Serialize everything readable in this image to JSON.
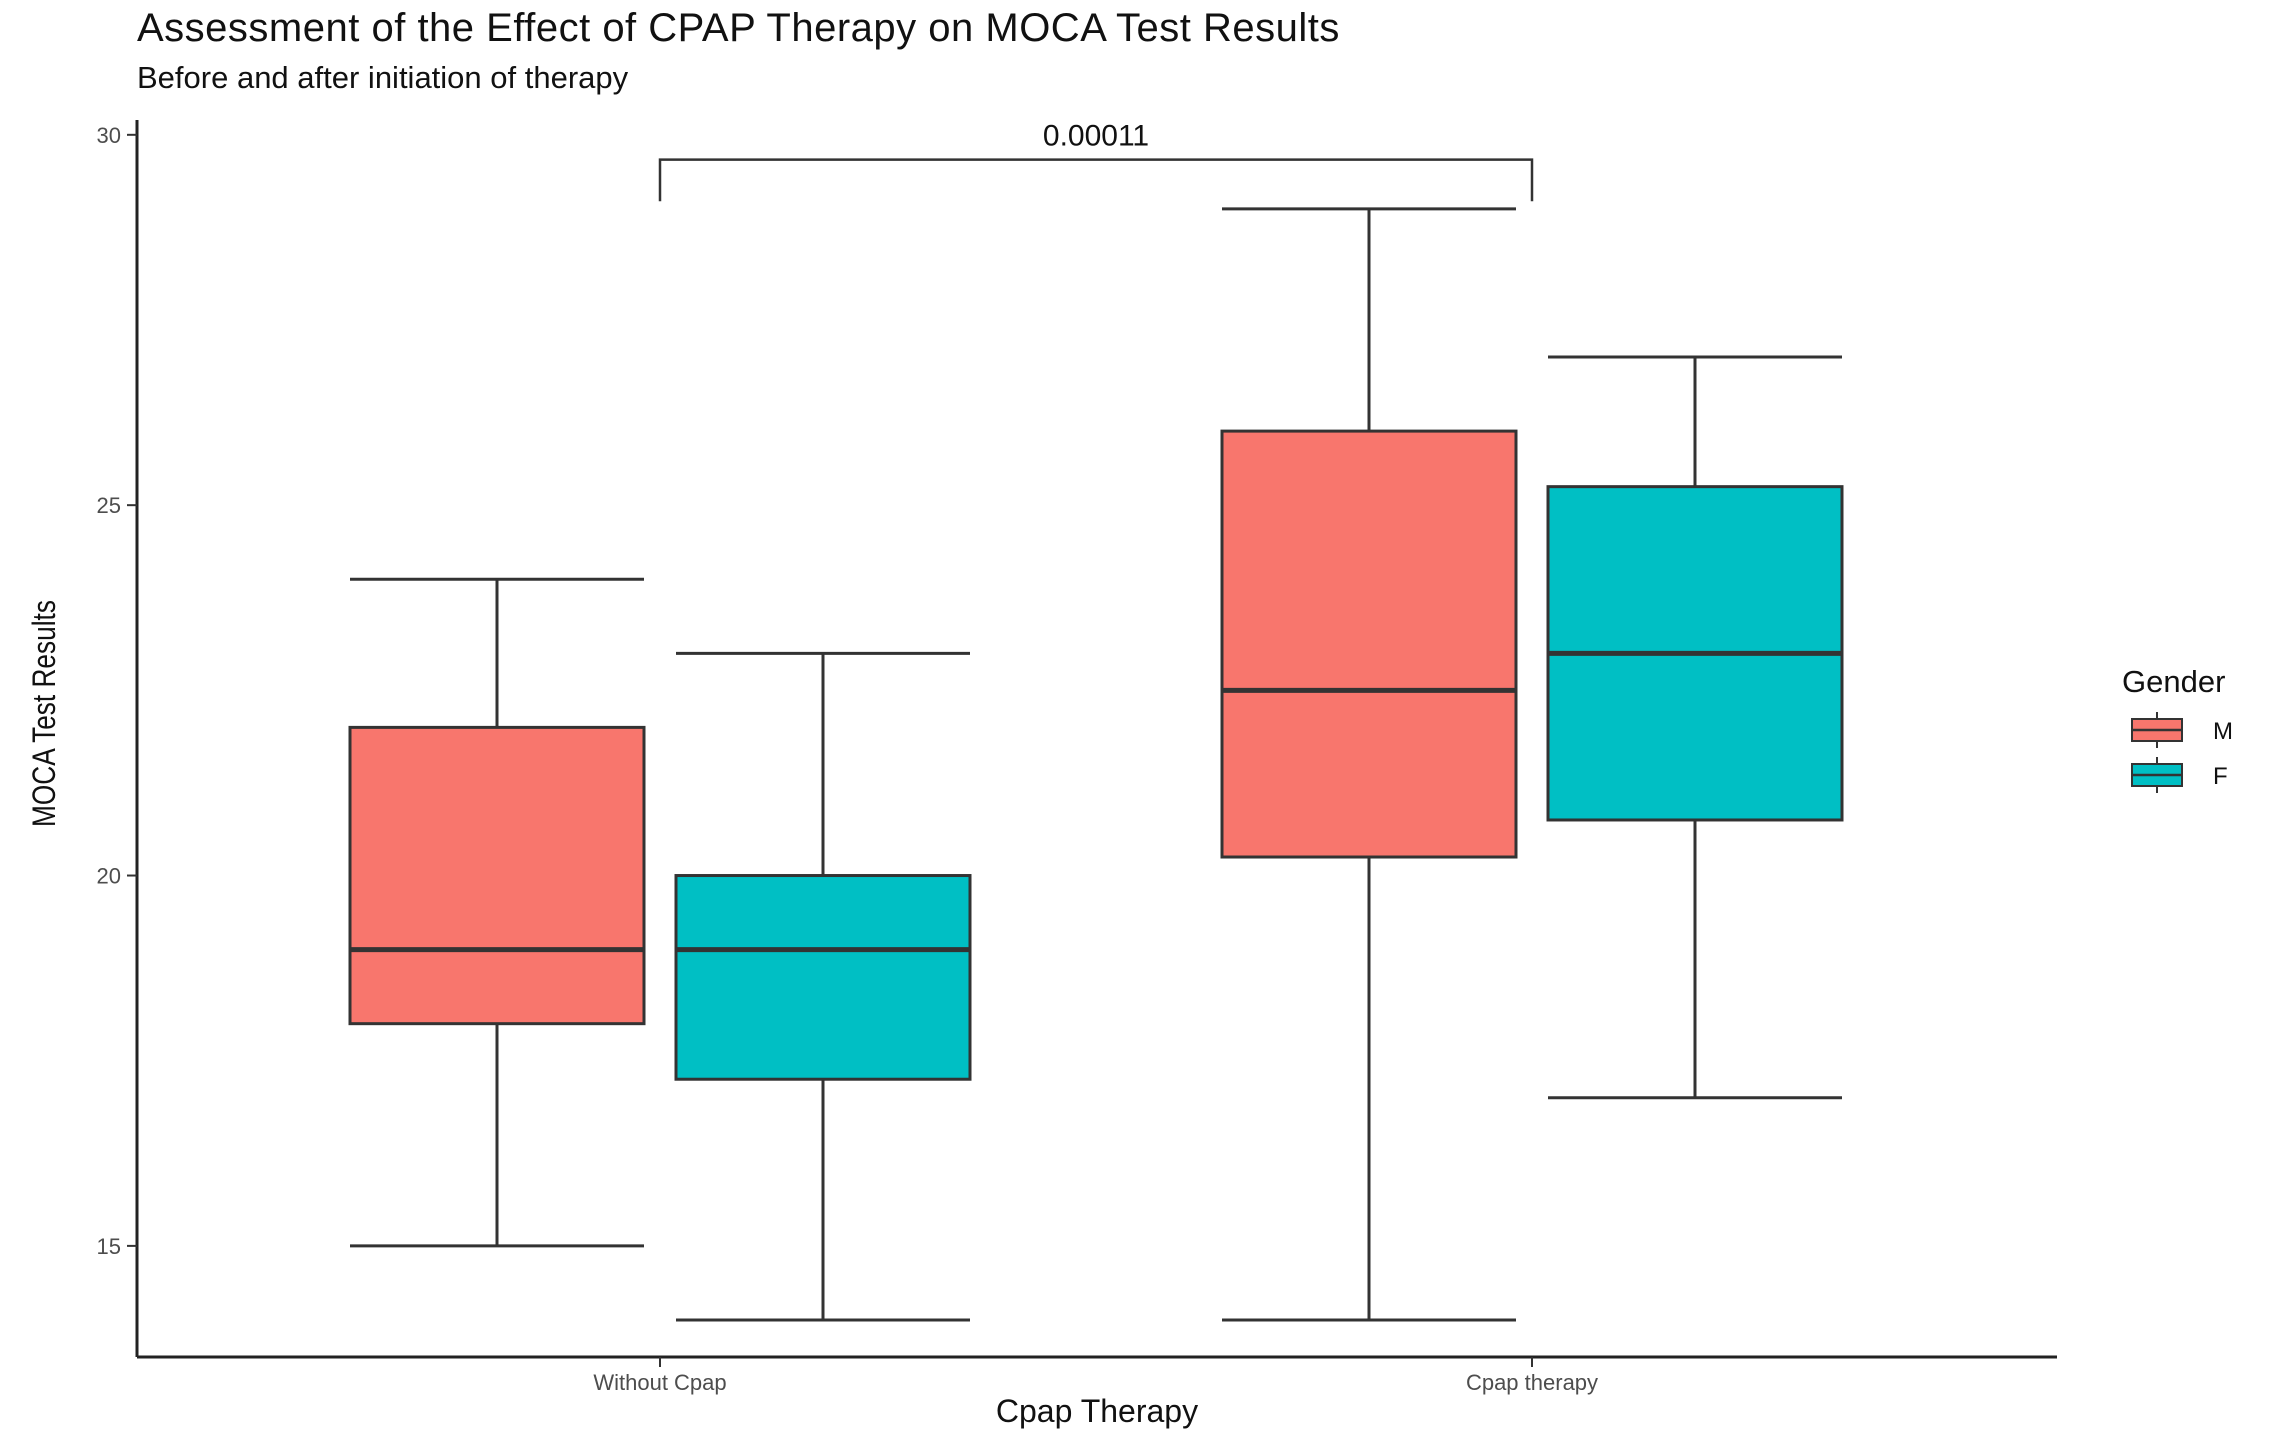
{
  "chart_data": {
    "type": "boxplot",
    "title": "Assessment of the Effect of CPAP Therapy on MOCA Test Results",
    "subtitle": "Before and after initiation of therapy",
    "xlabel": "Cpap Therapy",
    "ylabel": "MOCA Test Results",
    "ylim": [
      13.5,
      30.2
    ],
    "yticks": [
      15,
      20,
      25,
      30
    ],
    "yticklabels": [
      "15",
      "20",
      "25",
      "30"
    ],
    "categories": [
      "Without Cpap",
      "Cpap therapy"
    ],
    "legend": {
      "title": "Gender",
      "position": "right",
      "entries": [
        {
          "label": "M",
          "color": "#F8766D"
        },
        {
          "label": "F",
          "color": "#00BFC4"
        }
      ]
    },
    "series": [
      {
        "name": "M",
        "color": "#F8766D",
        "boxes": [
          {
            "category": "Without Cpap",
            "min": 15,
            "q1": 18,
            "median": 19,
            "q3": 22,
            "max": 24
          },
          {
            "category": "Cpap therapy",
            "min": 14,
            "q1": 20.25,
            "median": 22.5,
            "q3": 26,
            "max": 29
          }
        ]
      },
      {
        "name": "F",
        "color": "#00BFC4",
        "boxes": [
          {
            "category": "Without Cpap",
            "min": 14,
            "q1": 17.25,
            "median": 19,
            "q3": 20,
            "max": 23
          },
          {
            "category": "Cpap therapy",
            "min": 17,
            "q1": 20.75,
            "median": 23,
            "q3": 25.25,
            "max": 27
          }
        ]
      }
    ],
    "annotations": [
      {
        "type": "bracket",
        "from": "Without Cpap",
        "to": "Cpap therapy",
        "y_top": 29.8,
        "y_bottom": 29.4,
        "label": "0.00011"
      }
    ]
  }
}
